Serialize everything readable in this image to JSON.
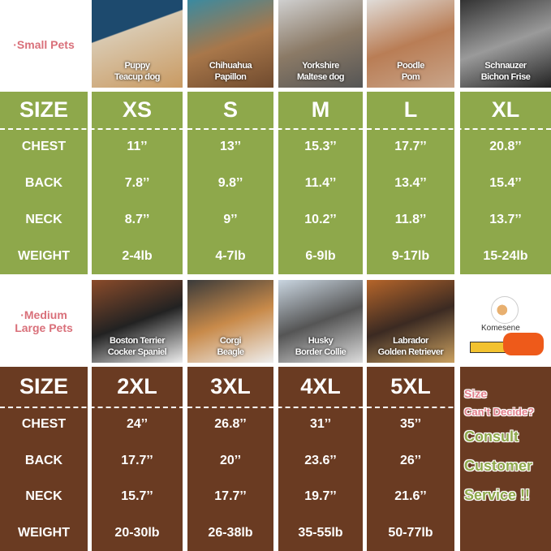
{
  "small": {
    "label": "·Small Pets",
    "breeds": [
      [
        "Puppy",
        "Teacup dog"
      ],
      [
        "Chihuahua",
        "Papillon"
      ],
      [
        "Yorkshire",
        "Maltese dog"
      ],
      [
        "Poodle",
        "Pom"
      ],
      [
        "Schnauzer",
        "Bichon Frise"
      ]
    ],
    "headers": [
      "SIZE",
      "XS",
      "S",
      "M",
      "L",
      "XL"
    ],
    "rows": [
      [
        "CHEST",
        "11’’",
        "13’’",
        "15.3’’",
        "17.7’’",
        "20.8’’"
      ],
      [
        "BACK",
        "7.8’’",
        "9.8’’",
        "11.4’’",
        "13.4’’",
        "15.4’’"
      ],
      [
        "NECK",
        "8.7’’",
        "9’’",
        "10.2’’",
        "11.8’’",
        "13.7’’"
      ],
      [
        "WEIGHT",
        "2-4lb",
        "4-7lb",
        "6-9lb",
        "9-17lb",
        "15-24lb"
      ]
    ],
    "color": "#8ea84b"
  },
  "medium": {
    "label": [
      "·Medium",
      "Large Pets"
    ],
    "breeds": [
      [
        "Boston Terrier",
        "Cocker Spaniel"
      ],
      [
        "Corgi",
        "Beagle"
      ],
      [
        "Husky",
        "Border Collie"
      ],
      [
        "Labrador",
        "Golden Retriever"
      ]
    ],
    "headers": [
      "SIZE",
      "2XL",
      "3XL",
      "4XL",
      "5XL"
    ],
    "rows": [
      [
        "CHEST",
        "24’’",
        "26.8’’",
        "31’’",
        "35’’"
      ],
      [
        "BACK",
        "17.7’’",
        "20’’",
        "23.6’’",
        "26’’"
      ],
      [
        "NECK",
        "15.7’’",
        "17.7’’",
        "19.7’’",
        "21.6’’"
      ],
      [
        "WEIGHT",
        "20-30lb",
        "26-38lb",
        "35-55lb",
        "50-77lb"
      ]
    ],
    "color": "#6a3b22"
  },
  "brand": "Komesene",
  "cta": {
    "line1": "Size",
    "line2": "Can't Decide?",
    "line3": "Consult",
    "line4": "Customer",
    "line5": "Service !!"
  }
}
